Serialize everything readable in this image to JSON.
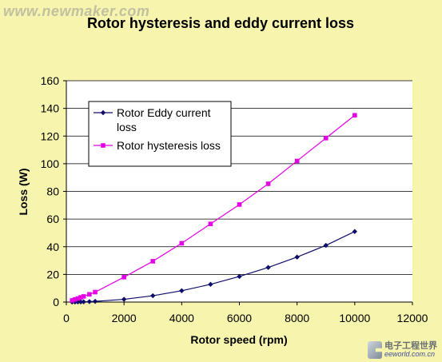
{
  "watermark": "www.newmaker.com",
  "logo": {
    "cn": "电子工程世界",
    "en": "eeworld.com.cn"
  },
  "chart_data": {
    "type": "line",
    "title": "Rotor hysteresis and eddy current loss",
    "xlabel": "Rotor speed (rpm)",
    "ylabel": "Loss (W)",
    "xlim": [
      0,
      12000
    ],
    "ylim": [
      0,
      160
    ],
    "xticks": [
      0,
      2000,
      4000,
      6000,
      8000,
      10000,
      12000
    ],
    "yticks": [
      0,
      20,
      40,
      60,
      80,
      100,
      120,
      140,
      160
    ],
    "grid": "horizontal",
    "legend_position": "top-left",
    "series": [
      {
        "name": "Rotor Eddy current loss",
        "color": "#0d0d6b",
        "marker": "diamond",
        "x": [
          200,
          300,
          400,
          500,
          600,
          800,
          1000,
          2000,
          3000,
          4000,
          5000,
          6000,
          7000,
          8000,
          9000,
          10000
        ],
        "y": [
          0.02,
          0.05,
          0.08,
          0.13,
          0.18,
          0.33,
          0.5,
          2,
          4.6,
          8.2,
          12.8,
          18.5,
          25,
          32.5,
          41,
          51
        ]
      },
      {
        "name": "Rotor hysteresis loss",
        "color": "#e600e6",
        "marker": "square",
        "x": [
          200,
          300,
          400,
          500,
          600,
          800,
          1000,
          2000,
          3000,
          4000,
          5000,
          6000,
          7000,
          8000,
          9000,
          10000
        ],
        "y": [
          1.2,
          1.9,
          2.6,
          3.4,
          4.1,
          5.6,
          7.2,
          18,
          29.5,
          42.5,
          56.5,
          70.5,
          85.5,
          102,
          118.5,
          135
        ]
      }
    ]
  }
}
